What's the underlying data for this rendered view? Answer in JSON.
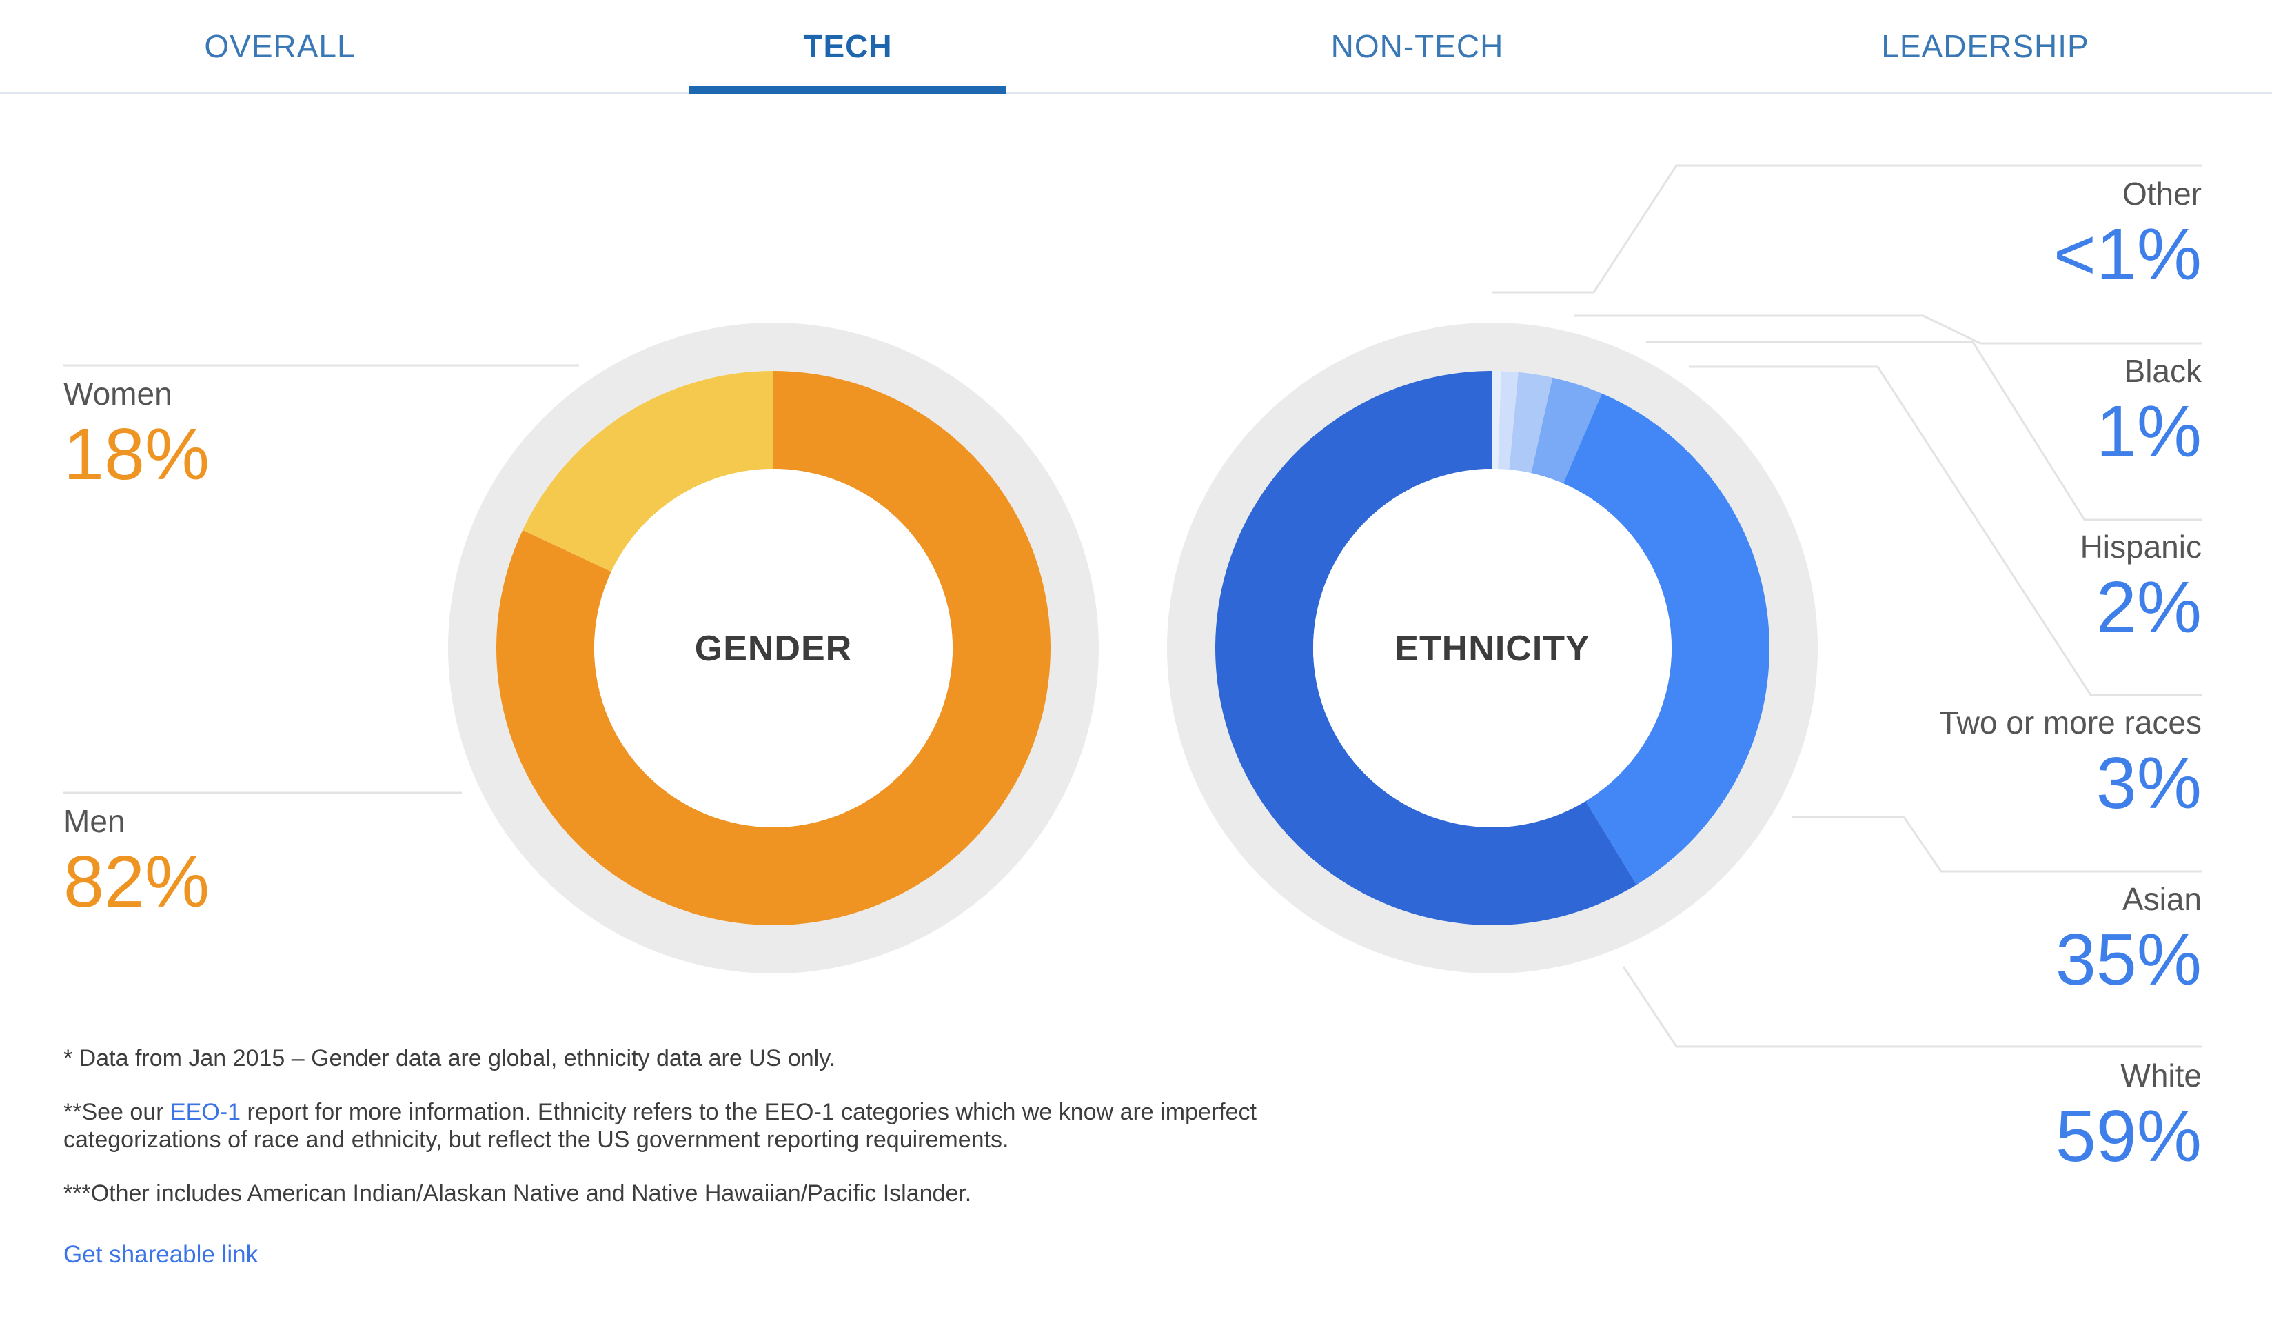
{
  "tabs": [
    {
      "label": "OVERALL",
      "active": false
    },
    {
      "label": "TECH",
      "active": true
    },
    {
      "label": "NON-TECH",
      "active": false
    },
    {
      "label": "LEADERSHIP",
      "active": false
    }
  ],
  "colors": {
    "gender_men": "#ef9322",
    "gender_women": "#f5c94d",
    "eth_white": "#3067d6",
    "eth_asian": "#4287f5",
    "eth_two_or_more": "#7aaaf5",
    "eth_hispanic": "#adc9f8",
    "eth_black": "#cfdefb",
    "eth_other": "#e6eefc",
    "track": "#ebebeb",
    "leader_line": "#e3e3e3"
  },
  "chart_data": [
    {
      "type": "pie",
      "center_label": "GENDER",
      "categories": [
        "Women",
        "Men"
      ],
      "values": [
        18,
        82
      ],
      "value_labels": [
        "18%",
        "82%"
      ]
    },
    {
      "type": "pie",
      "center_label": "ETHNICITY",
      "categories": [
        "Other",
        "Black",
        "Hispanic",
        "Two or more races",
        "Asian",
        "White"
      ],
      "values": [
        0.5,
        1,
        2,
        3,
        35,
        59
      ],
      "value_labels": [
        "<1%",
        "1%",
        "2%",
        "3%",
        "35%",
        "59%"
      ]
    }
  ],
  "footnotes": {
    "note1": "* Data from Jan 2015 – Gender data are global, ethnicity data are US only.",
    "note2_prefix": "**See our ",
    "note2_link": "EEO-1",
    "note2_suffix": " report for more information. Ethnicity refers to the EEO-1 categories which we know are imperfect categorizations of race and ethnicity, but reflect the US government reporting requirements.",
    "note3": "***Other includes American Indian/Alaskan Native and Native Hawaiian/Pacific Islander."
  },
  "share_link": "Get shareable link"
}
